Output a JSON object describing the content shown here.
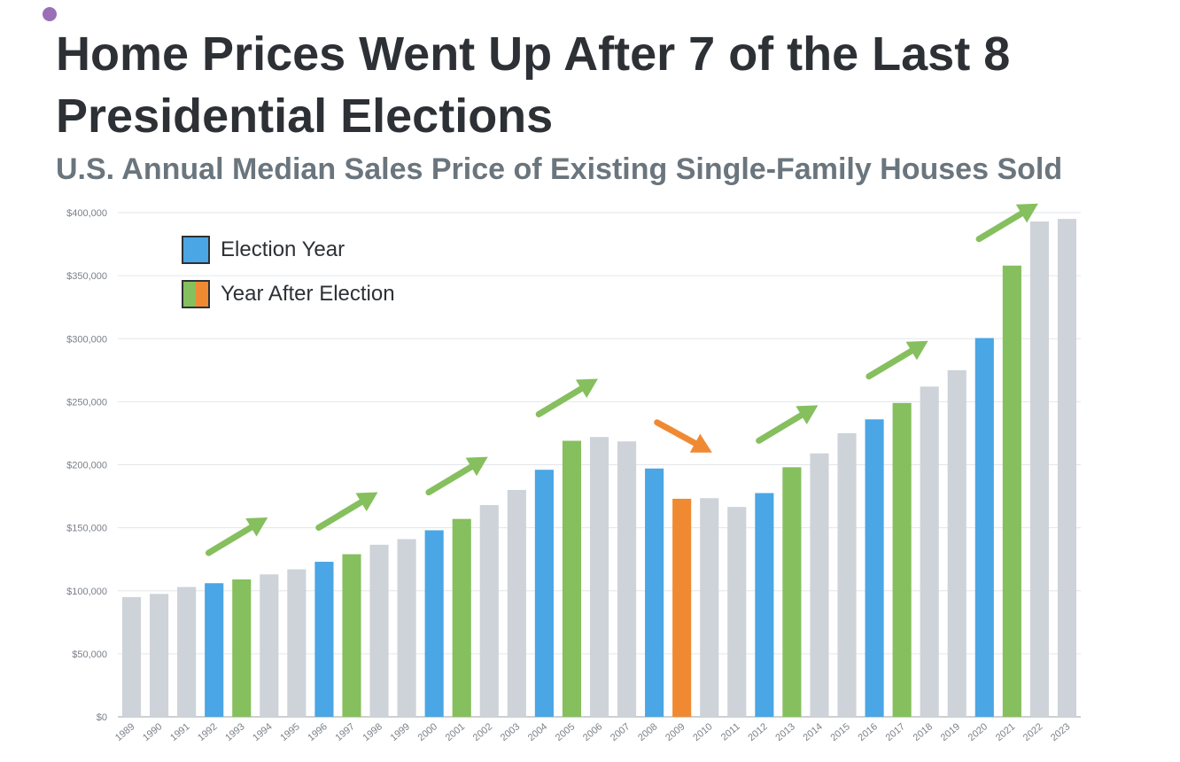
{
  "header": {
    "title": "Home Prices Went Up After 7 of the Last 8 Presidential Elections",
    "subtitle": "U.S. Annual Median Sales Price of Existing Single-Family Houses Sold"
  },
  "legend": {
    "election_label": "Election Year",
    "after_label": "Year After Election"
  },
  "colors": {
    "election": "#4aa6e4",
    "after_up": "#86bf5e",
    "after_down": "#ef8a33",
    "other": "#cdd3d8",
    "gridline": "#e3e6e9",
    "axis": "#9aa0a6",
    "tick_text": "#7a8189"
  },
  "chart_data": {
    "type": "bar",
    "title": "Home Prices Went Up After 7 of the Last 8 Presidential Elections",
    "subtitle": "U.S. Annual Median Sales Price of Existing Single-Family Houses Sold",
    "xlabel": "",
    "ylabel": "",
    "ylim": [
      0,
      400000
    ],
    "yticks": [
      0,
      50000,
      100000,
      150000,
      200000,
      250000,
      300000,
      350000,
      400000
    ],
    "ytick_labels": [
      "$0",
      "$50,000",
      "$100,000",
      "$150,000",
      "$200,000",
      "$250,000",
      "$300,000",
      "$350,000",
      "$400,000"
    ],
    "grid": true,
    "legend_position": "top-left",
    "categories": [
      "1989",
      "1990",
      "1991",
      "1992",
      "1993",
      "1994",
      "1995",
      "1996",
      "1997",
      "1998",
      "1999",
      "2000",
      "2001",
      "2002",
      "2003",
      "2004",
      "2005",
      "2006",
      "2007",
      "2008",
      "2009",
      "2010",
      "2011",
      "2012",
      "2013",
      "2014",
      "2015",
      "2016",
      "2017",
      "2018",
      "2019",
      "2020",
      "2021",
      "2022",
      "2023"
    ],
    "values": [
      95000,
      97500,
      103000,
      106000,
      109000,
      113000,
      117000,
      123000,
      129000,
      136500,
      141000,
      148000,
      157000,
      168000,
      180000,
      196000,
      219000,
      222000,
      218500,
      197000,
      173000,
      173500,
      166500,
      177500,
      198000,
      209000,
      225000,
      236000,
      249000,
      262000,
      275000,
      300500,
      358000,
      393000,
      395000
    ],
    "categories_type": [
      "other",
      "other",
      "other",
      "election",
      "after_up",
      "other",
      "other",
      "election",
      "after_up",
      "other",
      "other",
      "election",
      "after_up",
      "other",
      "other",
      "election",
      "after_up",
      "other",
      "other",
      "election",
      "after_down",
      "other",
      "other",
      "election",
      "after_up",
      "other",
      "other",
      "election",
      "after_up",
      "other",
      "other",
      "election",
      "after_up",
      "other",
      "other"
    ],
    "annotations": [
      {
        "type": "arrow",
        "direction": "up",
        "from_year": "1992",
        "to_year": "1993",
        "color": "after_up"
      },
      {
        "type": "arrow",
        "direction": "up",
        "from_year": "1996",
        "to_year": "1997",
        "color": "after_up"
      },
      {
        "type": "arrow",
        "direction": "up",
        "from_year": "2000",
        "to_year": "2001",
        "color": "after_up"
      },
      {
        "type": "arrow",
        "direction": "up",
        "from_year": "2004",
        "to_year": "2005",
        "color": "after_up"
      },
      {
        "type": "arrow",
        "direction": "down",
        "from_year": "2008",
        "to_year": "2009",
        "color": "after_down"
      },
      {
        "type": "arrow",
        "direction": "up",
        "from_year": "2012",
        "to_year": "2013",
        "color": "after_up"
      },
      {
        "type": "arrow",
        "direction": "up",
        "from_year": "2016",
        "to_year": "2017",
        "color": "after_up"
      },
      {
        "type": "arrow",
        "direction": "up",
        "from_year": "2020",
        "to_year": "2021",
        "color": "after_up"
      }
    ]
  }
}
